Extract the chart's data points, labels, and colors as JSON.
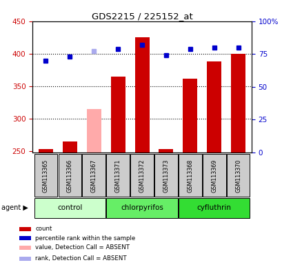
{
  "title": "GDS2215 / 225152_at",
  "samples": [
    "GSM113365",
    "GSM113366",
    "GSM113367",
    "GSM113371",
    "GSM113372",
    "GSM113373",
    "GSM113368",
    "GSM113369",
    "GSM113370"
  ],
  "groups": [
    {
      "name": "control",
      "indices": [
        0,
        1,
        2
      ],
      "color": "#ccffcc"
    },
    {
      "name": "chlorpyrifos",
      "indices": [
        3,
        4,
        5
      ],
      "color": "#66ee66"
    },
    {
      "name": "cyfluthrin",
      "indices": [
        6,
        7,
        8
      ],
      "color": "#44dd44"
    }
  ],
  "bar_values": [
    253,
    265,
    null,
    365,
    425,
    253,
    361,
    388,
    400
  ],
  "absent_bar_values": [
    null,
    null,
    315,
    null,
    null,
    null,
    null,
    null,
    null
  ],
  "bar_bottom": 248,
  "dot_pct": [
    70,
    73,
    null,
    79,
    82,
    74,
    79,
    80,
    80
  ],
  "absent_dot_pct": [
    null,
    null,
    77,
    null,
    null,
    null,
    null,
    null,
    null
  ],
  "ylim_lo": 248,
  "ylim_hi": 450,
  "yticks": [
    250,
    300,
    350,
    400,
    450
  ],
  "right_yticks": [
    0,
    25,
    50,
    75,
    100
  ],
  "bar_color": "#cc0000",
  "absent_bar_color": "#ffaaaa",
  "dot_color": "#0000cc",
  "absent_dot_color": "#aaaaee",
  "bg_color": "#cccccc",
  "left_label_color": "#cc0000",
  "right_label_color": "#0000cc",
  "legend_items": [
    {
      "color": "#cc0000",
      "label": "count"
    },
    {
      "color": "#0000cc",
      "label": "percentile rank within the sample"
    },
    {
      "color": "#ffaaaa",
      "label": "value, Detection Call = ABSENT"
    },
    {
      "color": "#aaaaee",
      "label": "rank, Detection Call = ABSENT"
    }
  ]
}
